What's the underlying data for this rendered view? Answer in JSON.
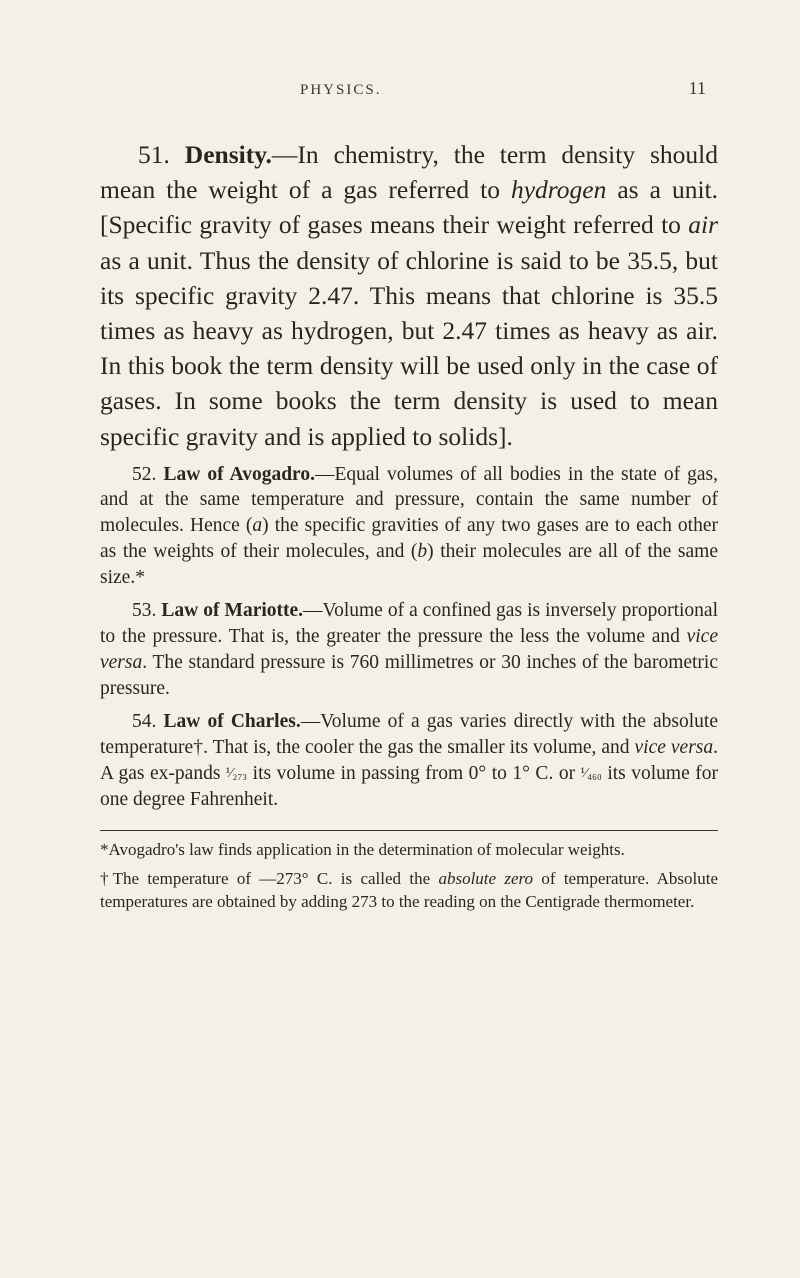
{
  "page": {
    "header_title": "PHYSICS.",
    "page_number": "11"
  },
  "section51": {
    "number": "51.",
    "heading": "Density.",
    "body_a": "—In chemistry, the term density should mean the weight of a gas referred to ",
    "hydrogen": "hydrogen",
    "body_b": " as a unit. [Specific gravity of gases means their weight referred to ",
    "air": "air",
    "body_c": " as a unit. Thus the density of chlorine is said to be 35.5, but its specific gravity 2.47. This means that chlorine is 35.5 times as heavy as hydrogen, but 2.47 times as heavy as air. In this book the term density will be used only in the case of gases. In some books the term density is used to mean specific gravity and is applied to solids]."
  },
  "section52": {
    "number": "52.",
    "heading": "Law of Avogadro.",
    "body_a": "—Equal volumes of all bodies in the state of gas, and at the same temperature and pressure, contain the same number of molecules. Hence (",
    "a": "a",
    "body_b": ") the specific gravities of any two gases are to each other as the weights of their molecules, and (",
    "b": "b",
    "body_c": ") their molecules are all of the same size.*"
  },
  "section53": {
    "number": "53.",
    "heading": "Law of Mariotte.",
    "body_a": "—Volume of a confined gas is inversely proportional to the pressure. That is, the greater the pressure the less the volume and ",
    "vice_versa": "vice versa",
    "body_b": ". The standard pressure is 760 millimetres or 30 inches of the barometric pressure."
  },
  "section54": {
    "number": "54.",
    "heading": "Law of Charles.",
    "body_a": "—Volume of a gas varies directly with the absolute temperature†. That is, the cooler the gas the smaller its volume, and ",
    "vice_versa": "vice versa",
    "body_b": ". A gas ex-pands ",
    "frac1": "¹⁄₂₇₃",
    "body_c": " its volume in passing from 0° to 1° C. or ",
    "frac2": "¹⁄₄₆₀",
    "body_d": " its volume for one degree Fahrenheit."
  },
  "footnote1": {
    "marker": "*",
    "text": "Avogadro's law finds application in the determination of molecular weights."
  },
  "footnote2": {
    "marker": "†",
    "text_a": "The temperature of —273° C. is called the ",
    "absolute_zero": "absolute zero",
    "text_b": " of temperature. Absolute temperatures are obtained by adding 273 to the reading on the Centigrade thermometer."
  }
}
